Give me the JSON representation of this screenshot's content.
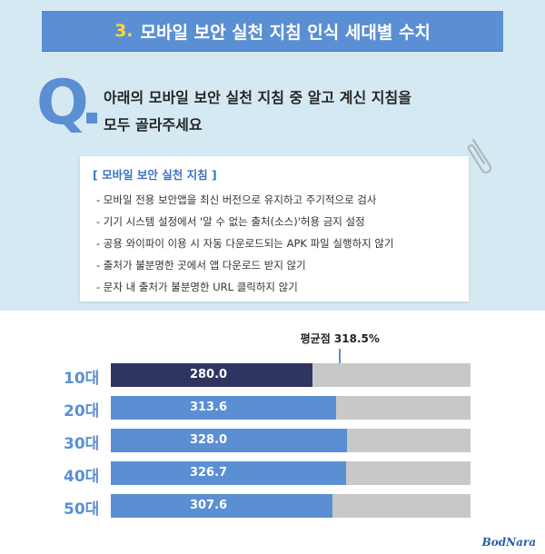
{
  "header": {
    "title_number": "3.",
    "title_text": "모바일 보안 실천 지침 인식 세대별 수치",
    "title_bg": "#5b8fd4",
    "number_color": "#fdd835"
  },
  "question": {
    "letter": "Q",
    "line1": "아래의 모바일 보안 실천 지침 중 알고 계신 지침을",
    "line2": "모두 골라주세요"
  },
  "guide": {
    "header": "[ 모바일 보안 실천 지침 ]",
    "items": [
      "- 모바일 전용 보안앱을 최신 버전으로 유지하고 주기적으로 검사",
      "- 기기 시스템 설정에서 '알 수 없는 출처(소스)'허용 금지 설정",
      "- 공용 와이파이 이용 시 자동 다운로드되는 APK 파일 실행하지 않기",
      "- 출처가 불분명한 곳에서 앱 다운로드 받지 않기",
      "- 문자 내 출처가 불분명한 URL 클릭하지 않기"
    ]
  },
  "chart_data": {
    "type": "bar",
    "orientation": "horizontal",
    "categories": [
      "10대",
      "20대",
      "30대",
      "40대",
      "50대"
    ],
    "values": [
      280.0,
      313.6,
      328.0,
      326.7,
      307.6
    ],
    "value_labels": [
      "280.0",
      "313.6",
      "328.0",
      "326.7",
      "307.6"
    ],
    "average": 318.5,
    "average_label": "평균점 318.5%",
    "xlim": [
      0,
      500
    ],
    "colors": {
      "highlight": "#2f3560",
      "bar": "#5b8fd4",
      "track": "#c8c8c8",
      "avg_line": "#5b8fd4"
    }
  },
  "footer": {
    "logo": "BodNara"
  }
}
